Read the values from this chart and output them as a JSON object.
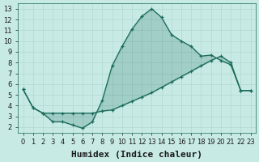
{
  "xlabel": "Humidex (Indice chaleur)",
  "background_color": "#c8eae5",
  "line_color": "#1a6b5a",
  "fill_color": "#1a6b5a",
  "xlim": [
    -0.5,
    23.5
  ],
  "ylim": [
    1.5,
    13.5
  ],
  "xticks": [
    0,
    1,
    2,
    3,
    4,
    5,
    6,
    7,
    8,
    9,
    10,
    11,
    12,
    13,
    14,
    15,
    16,
    17,
    18,
    19,
    20,
    21,
    22,
    23
  ],
  "yticks": [
    2,
    3,
    4,
    5,
    6,
    7,
    8,
    9,
    10,
    11,
    12,
    13
  ],
  "grid_color": "#b0d8d2",
  "font_size": 7,
  "upper_x": [
    0,
    1,
    2,
    3,
    4,
    5,
    6,
    7,
    8,
    9,
    10,
    11,
    12,
    13,
    14,
    15,
    16,
    17,
    18,
    19,
    20,
    21,
    22,
    23
  ],
  "upper_y": [
    5.5,
    3.8,
    3.3,
    2.5,
    2.5,
    2.2,
    1.9,
    2.5,
    4.5,
    7.7,
    9.5,
    11.1,
    12.3,
    13.0,
    12.2,
    10.6,
    10.0,
    9.5,
    8.6,
    8.7,
    8.2,
    7.8,
    5.4,
    5.4
  ],
  "lower_x": [
    0,
    1,
    2,
    3,
    4,
    5,
    6,
    7,
    8,
    9,
    10,
    11,
    12,
    13,
    14,
    15,
    16,
    17,
    18,
    19,
    20,
    21,
    22,
    23
  ],
  "lower_y": [
    5.5,
    3.8,
    3.3,
    3.3,
    3.3,
    3.3,
    3.3,
    3.3,
    3.5,
    3.6,
    4.0,
    4.4,
    4.8,
    5.2,
    5.7,
    6.2,
    6.7,
    7.2,
    7.7,
    8.2,
    8.6,
    8.0,
    5.4,
    5.4
  ]
}
